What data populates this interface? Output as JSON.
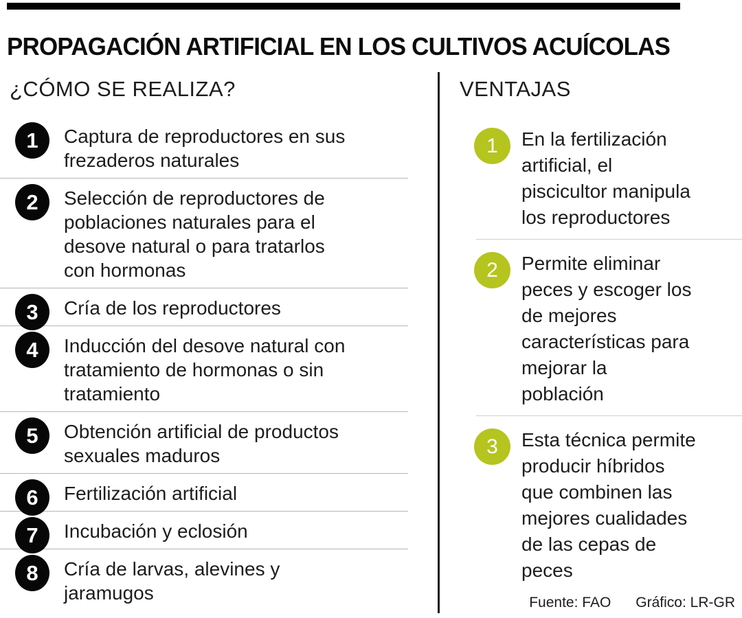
{
  "title": "PROPAGACIÓN ARTIFICIAL EN LOS CULTIVOS ACUÍCOLAS",
  "how": {
    "heading": "¿CÓMO SE REALIZA?",
    "steps": [
      {
        "num": "1",
        "text": "Captura de reproductores en sus\nfrezaderos naturales"
      },
      {
        "num": "2",
        "text": "Selección de reproductores de\npoblaciones naturales para el\ndesove natural o para tratarlos\ncon hormonas"
      },
      {
        "num": "3",
        "text": "Cría de los reproductores"
      },
      {
        "num": "4",
        "text": "Inducción del desove natural con\ntratamiento de hormonas o sin\ntratamiento"
      },
      {
        "num": "5",
        "text": "Obtención artificial de productos\nsexuales maduros"
      },
      {
        "num": "6",
        "text": "Fertilización artificial"
      },
      {
        "num": "7",
        "text": "Incubación y eclosión"
      },
      {
        "num": "8",
        "text": "Cría de larvas, alevines y\njaramugos"
      }
    ]
  },
  "ventajas": {
    "heading": "VENTAJAS",
    "items": [
      {
        "num": "1",
        "text": "En la fertilización\nartificial, el\npiscicultor manipula\nlos reproductores"
      },
      {
        "num": "2",
        "text": "Permite eliminar\npeces y escoger los\nde mejores\ncaracterísticas para\nmejorar la\npoblación"
      },
      {
        "num": "3",
        "text": "Esta técnica permite\nproducir híbridos\nque combinen las\nmejores cualidades\nde las cepas de\npeces"
      }
    ]
  },
  "footer": {
    "source": "Fuente: FAO",
    "credit": "Gráfico: LR-GR"
  },
  "colors": {
    "accent_green": "#b5c41f",
    "circle_black": "#070707",
    "top_bar": "#000000",
    "separator_left": "#b5b5b5",
    "separator_right": "#cfcfcf"
  }
}
